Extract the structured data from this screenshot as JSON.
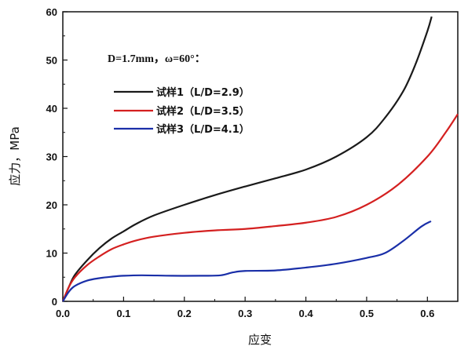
{
  "chart_data": {
    "type": "line",
    "xlabel": "应变",
    "ylabel": "应力，MPa",
    "xlim": [
      0.0,
      0.65
    ],
    "ylim": [
      0,
      60
    ],
    "xticks": [
      "0.0",
      "0.1",
      "0.2",
      "0.3",
      "0.4",
      "0.5",
      "0.6"
    ],
    "yticks": [
      "0",
      "10",
      "20",
      "30",
      "40",
      "50",
      "60"
    ],
    "annotation": "D=1.7mm，ω=60°：",
    "grid": false,
    "legend_position": "upper-left",
    "series": [
      {
        "name": "试样1（L/D=2.9）",
        "color": "#1a1a1a",
        "points": [
          [
            0.0,
            0
          ],
          [
            0.01,
            3
          ],
          [
            0.02,
            5.5
          ],
          [
            0.04,
            8.5
          ],
          [
            0.06,
            11
          ],
          [
            0.08,
            13
          ],
          [
            0.1,
            14.5
          ],
          [
            0.12,
            16
          ],
          [
            0.15,
            17.8
          ],
          [
            0.2,
            20
          ],
          [
            0.25,
            22
          ],
          [
            0.3,
            23.8
          ],
          [
            0.35,
            25.5
          ],
          [
            0.4,
            27.3
          ],
          [
            0.45,
            30
          ],
          [
            0.5,
            34
          ],
          [
            0.53,
            38
          ],
          [
            0.56,
            43.5
          ],
          [
            0.58,
            49
          ],
          [
            0.6,
            56
          ],
          [
            0.607,
            59
          ]
        ]
      },
      {
        "name": "试样2（L/D=3.5）",
        "color": "#d42020",
        "points": [
          [
            0.0,
            0
          ],
          [
            0.01,
            3
          ],
          [
            0.02,
            5
          ],
          [
            0.04,
            7.5
          ],
          [
            0.06,
            9.3
          ],
          [
            0.08,
            10.8
          ],
          [
            0.1,
            11.8
          ],
          [
            0.12,
            12.6
          ],
          [
            0.15,
            13.4
          ],
          [
            0.2,
            14.2
          ],
          [
            0.25,
            14.7
          ],
          [
            0.3,
            15
          ],
          [
            0.35,
            15.6
          ],
          [
            0.4,
            16.3
          ],
          [
            0.45,
            17.5
          ],
          [
            0.5,
            20
          ],
          [
            0.55,
            24
          ],
          [
            0.6,
            30
          ],
          [
            0.63,
            35
          ],
          [
            0.65,
            38.8
          ]
        ]
      },
      {
        "name": "试样3（L/D=4.1）",
        "color": "#1a2fa8",
        "points": [
          [
            0.0,
            0
          ],
          [
            0.01,
            2
          ],
          [
            0.02,
            3.2
          ],
          [
            0.04,
            4.3
          ],
          [
            0.06,
            4.8
          ],
          [
            0.08,
            5.1
          ],
          [
            0.1,
            5.3
          ],
          [
            0.13,
            5.4
          ],
          [
            0.18,
            5.3
          ],
          [
            0.23,
            5.3
          ],
          [
            0.26,
            5.4
          ],
          [
            0.28,
            6
          ],
          [
            0.3,
            6.3
          ],
          [
            0.35,
            6.4
          ],
          [
            0.4,
            7
          ],
          [
            0.45,
            7.8
          ],
          [
            0.5,
            9
          ],
          [
            0.53,
            10
          ],
          [
            0.56,
            12.5
          ],
          [
            0.59,
            15.5
          ],
          [
            0.606,
            16.6
          ]
        ]
      }
    ]
  }
}
